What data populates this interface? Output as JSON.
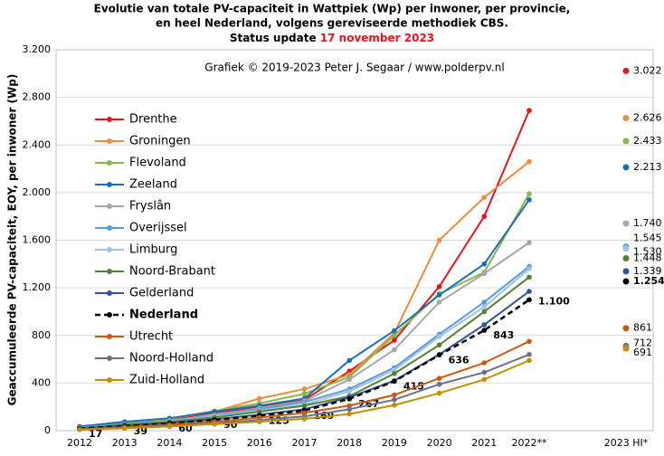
{
  "chart_data": {
    "type": "line",
    "title": [
      "Evolutie van totale PV-capaciteit in Wattpiek (Wp) per inwoner,  per provincie,",
      "en heel Nederland, volgens gereviseerde methodiek CBS."
    ],
    "status_prefix": "Status update",
    "status_date": "17 november 2023",
    "subtitle": "Grafiek  © 2019-2023 Peter J. Segaar / www.polderpv.nl",
    "y_label": "Geaccumuleerde PV-capaciteit, EOY, per inwoner (Wp)",
    "categories": [
      "2012",
      "2013",
      "2014",
      "2015",
      "2016",
      "2017",
      "2018",
      "2019",
      "2020",
      "2021",
      "2022**",
      "2023 HI*"
    ],
    "ylim": [
      0,
      3200
    ],
    "yticks": [
      0,
      400,
      800,
      {
        "value": 1200,
        "label": "1.200"
      },
      {
        "value": 1600,
        "label": "1.600"
      },
      {
        "value": 2000,
        "label": "2.000"
      },
      {
        "value": 2400,
        "label": "2.400"
      },
      {
        "value": 2800,
        "label": "2.800"
      },
      {
        "value": 3200,
        "label": "3.200"
      }
    ],
    "grid": true,
    "series": [
      {
        "name": "Drenthe",
        "color": "#e8141b",
        "values": [
          30,
          65,
          95,
          150,
          200,
          260,
          500,
          760,
          1210,
          1800,
          2690,
          3022
        ],
        "value_labels": [
          null,
          null,
          null,
          null,
          null,
          null,
          null,
          null,
          null,
          null,
          null,
          "3.022"
        ]
      },
      {
        "name": "Groningen",
        "color": "#f08a3c",
        "values": [
          25,
          60,
          100,
          160,
          270,
          350,
          470,
          820,
          1600,
          1960,
          2260,
          2626
        ],
        "value_labels": [
          null,
          null,
          null,
          null,
          null,
          null,
          null,
          null,
          null,
          null,
          null,
          "2.626"
        ]
      },
      {
        "name": "Flevoland",
        "color": "#86b849",
        "values": [
          30,
          70,
          100,
          165,
          230,
          310,
          450,
          800,
          1150,
          1330,
          1990,
          2433
        ],
        "value_labels": [
          null,
          null,
          null,
          null,
          null,
          null,
          null,
          null,
          null,
          null,
          null,
          "2.433"
        ]
      },
      {
        "name": "Zeeland",
        "color": "#1a6fb6",
        "values": [
          35,
          75,
          105,
          160,
          210,
          270,
          590,
          840,
          1140,
          1400,
          1940,
          2213
        ],
        "value_labels": [
          null,
          null,
          null,
          null,
          null,
          null,
          null,
          null,
          null,
          null,
          null,
          "2.213"
        ]
      },
      {
        "name": "Fryslân",
        "color": "#a6a6a6",
        "values": [
          25,
          55,
          85,
          130,
          190,
          250,
          430,
          680,
          1080,
          1320,
          1580,
          1740
        ],
        "value_labels": [
          null,
          null,
          null,
          null,
          null,
          null,
          null,
          null,
          null,
          null,
          null,
          "1.740"
        ]
      },
      {
        "name": "Overijssel",
        "color": "#5b9bd5",
        "values": [
          25,
          55,
          85,
          125,
          180,
          240,
          350,
          530,
          810,
          1080,
          1380,
          1545
        ],
        "value_labels": [
          null,
          null,
          null,
          null,
          null,
          null,
          null,
          null,
          null,
          null,
          null,
          "1.545"
        ]
      },
      {
        "name": "Limburg",
        "color": "#9dc3e6",
        "values": [
          20,
          50,
          80,
          120,
          170,
          220,
          330,
          510,
          790,
          1040,
          1360,
          1530
        ],
        "value_labels": [
          null,
          null,
          null,
          null,
          null,
          null,
          null,
          null,
          null,
          null,
          null,
          "1.530"
        ]
      },
      {
        "name": "Noord-Brabant",
        "color": "#548235",
        "values": [
          20,
          50,
          75,
          110,
          160,
          210,
          290,
          480,
          720,
          1000,
          1290,
          1448
        ],
        "value_labels": [
          null,
          null,
          null,
          null,
          null,
          null,
          null,
          null,
          null,
          null,
          null,
          "1.448"
        ]
      },
      {
        "name": "Gelderland",
        "color": "#2f5597",
        "values": [
          18,
          40,
          65,
          95,
          135,
          180,
          280,
          420,
          640,
          890,
          1170,
          1339
        ],
        "value_labels": [
          null,
          null,
          null,
          null,
          null,
          null,
          null,
          null,
          null,
          null,
          null,
          "1.339"
        ]
      },
      {
        "name": "Nederland",
        "color": "#000000",
        "dashed": true,
        "values": [
          17,
          39,
          60,
          90,
          125,
          169,
          267,
          415,
          636,
          843,
          1100,
          1254
        ],
        "value_labels": [
          null,
          null,
          null,
          null,
          null,
          null,
          null,
          null,
          null,
          null,
          "1.100",
          "1.254"
        ]
      },
      {
        "name": "Utrecht",
        "color": "#c55a11",
        "values": [
          12,
          30,
          50,
          75,
          110,
          150,
          210,
          300,
          440,
          570,
          750,
          861
        ],
        "value_labels": [
          null,
          null,
          null,
          null,
          null,
          null,
          null,
          null,
          null,
          null,
          null,
          "861"
        ]
      },
      {
        "name": "Noord-Holland",
        "color": "#6e6e8a",
        "values": [
          10,
          25,
          40,
          60,
          90,
          120,
          180,
          260,
          390,
          490,
          640,
          712
        ],
        "value_labels": [
          null,
          null,
          null,
          null,
          null,
          null,
          null,
          null,
          null,
          null,
          null,
          "712"
        ]
      },
      {
        "name": "Zuid-Holland",
        "color": "#bf9000",
        "values": [
          8,
          20,
          35,
          55,
          75,
          100,
          140,
          215,
          315,
          430,
          590,
          691
        ],
        "value_labels": [
          null,
          null,
          null,
          null,
          null,
          null,
          null,
          null,
          null,
          null,
          null,
          "691"
        ]
      }
    ]
  }
}
